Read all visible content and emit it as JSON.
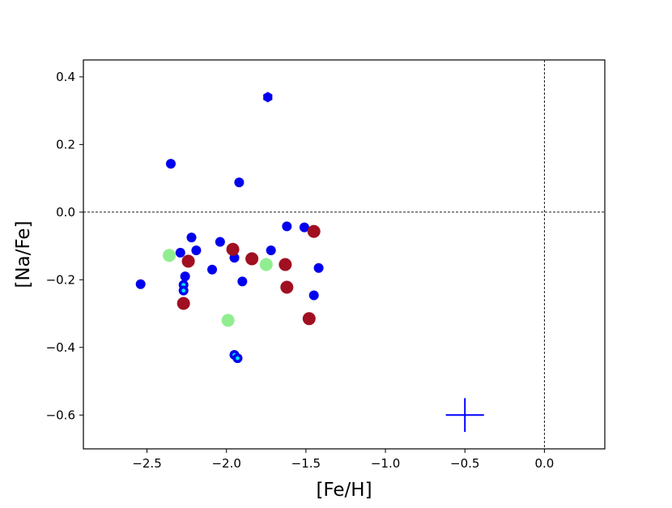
{
  "chart_data": {
    "type": "scatter",
    "title": "",
    "xlabel": "[Fe/H]",
    "ylabel": "[Na/Fe]",
    "xlim": [
      -2.9,
      0.38
    ],
    "ylim": [
      -0.7,
      0.45
    ],
    "xticks": [
      -2.5,
      -2.0,
      -1.5,
      -1.0,
      -0.5,
      0.0
    ],
    "xtick_labels": [
      "−2.5",
      "−2.0",
      "−1.5",
      "−1.0",
      "−0.5",
      "0.0"
    ],
    "yticks": [
      0.4,
      0.2,
      0.0,
      -0.2,
      -0.4,
      -0.6
    ],
    "ytick_labels": [
      "0.4",
      "0.2",
      "0.0",
      "−0.2",
      "−0.4",
      "−0.6"
    ],
    "grid": false,
    "reference_lines": {
      "x": 0.0,
      "y": 0.0,
      "style": "dashed",
      "color": "#000000"
    },
    "error_cross": {
      "x": -0.5,
      "y": -0.6,
      "xerr": 0.12,
      "yerr": 0.05,
      "color": "#0000ff"
    },
    "series": [
      {
        "marker": "circle",
        "color": "#0000ee",
        "points": [
          [
            -2.35,
            0.143
          ],
          [
            -1.92,
            0.088
          ],
          [
            -2.54,
            -0.213
          ],
          [
            -2.29,
            -0.12
          ],
          [
            -2.22,
            -0.075
          ],
          [
            -2.19,
            -0.113
          ],
          [
            -2.04,
            -0.088
          ],
          [
            -2.09,
            -0.17
          ],
          [
            -1.95,
            -0.135
          ],
          [
            -1.9,
            -0.205
          ],
          [
            -1.72,
            -0.113
          ],
          [
            -1.62,
            -0.042
          ],
          [
            -1.51,
            -0.045
          ],
          [
            -1.42,
            -0.165
          ],
          [
            -1.45,
            -0.246
          ],
          [
            -2.26,
            -0.19
          ]
        ]
      },
      {
        "marker": "hexagon",
        "color": "#0000ee",
        "points": [
          [
            -1.74,
            0.34
          ]
        ]
      },
      {
        "marker": "circle-cyan-highlight",
        "color": "#0000ee",
        "highlight": "#00e5ff",
        "points": [
          [
            -2.27,
            -0.215
          ],
          [
            -2.27,
            -0.232
          ],
          [
            -1.95,
            -0.422
          ],
          [
            -1.93,
            -0.432
          ]
        ]
      },
      {
        "marker": "circle",
        "color": "#a01020",
        "points": [
          [
            -2.24,
            -0.145
          ],
          [
            -1.96,
            -0.11
          ],
          [
            -1.84,
            -0.138
          ],
          [
            -1.63,
            -0.155
          ],
          [
            -1.62,
            -0.222
          ],
          [
            -1.45,
            -0.057
          ],
          [
            -2.27,
            -0.27
          ],
          [
            -1.48,
            -0.315
          ]
        ]
      },
      {
        "marker": "circle",
        "color": "#90ee90",
        "points": [
          [
            -2.36,
            -0.128
          ],
          [
            -1.75,
            -0.155
          ],
          [
            -1.99,
            -0.32
          ]
        ]
      }
    ]
  }
}
